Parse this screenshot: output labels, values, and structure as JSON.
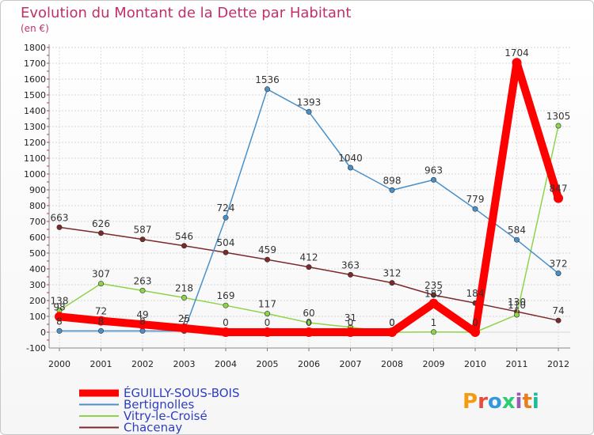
{
  "chart_data": {
    "type": "line",
    "title": "Evolution du Montant de la Dette par Habitant",
    "subtitle": "(en €)",
    "x": [
      "2000",
      "2001",
      "2002",
      "2003",
      "2004",
      "2005",
      "2006",
      "2007",
      "2008",
      "2009",
      "2010",
      "2011",
      "2012"
    ],
    "ylim": [
      -100,
      1800
    ],
    "yticks": [
      -100,
      0,
      100,
      200,
      300,
      400,
      500,
      600,
      700,
      800,
      900,
      1000,
      1100,
      1200,
      1300,
      1400,
      1500,
      1600,
      1700,
      1800
    ],
    "grid": true,
    "legend_position": "bottom-left",
    "series": [
      {
        "name": "ÉGUILLY-SOUS-BOIS",
        "color": "#ff0000",
        "values": [
          98,
          72,
          49,
          25,
          0,
          0,
          0,
          0,
          0,
          182,
          0,
          1704,
          847
        ]
      },
      {
        "name": "Bertignolles",
        "color": "#4a90c8",
        "values": [
          8,
          8,
          8,
          7,
          724,
          1536,
          1393,
          1040,
          898,
          963,
          779,
          584,
          372
        ]
      },
      {
        "name": "Vitry-le-Croisé",
        "color": "#8ed44a",
        "values": [
          138,
          307,
          263,
          218,
          169,
          117,
          60,
          31,
          0,
          1,
          0,
          110,
          1305
        ]
      },
      {
        "name": "Chacenay",
        "color": "#7a2a2a",
        "values": [
          663,
          626,
          587,
          546,
          504,
          459,
          412,
          363,
          312,
          235,
          184,
          130,
          74
        ]
      }
    ],
    "labels": [
      {
        "series": 1,
        "index": 4,
        "text": "724"
      },
      {
        "series": 1,
        "index": 5,
        "text": "1536"
      },
      {
        "series": 1,
        "index": 6,
        "text": "1393"
      },
      {
        "series": 1,
        "index": 7,
        "text": "1040"
      },
      {
        "series": 1,
        "index": 8,
        "text": "898"
      },
      {
        "series": 1,
        "index": 9,
        "text": "963"
      },
      {
        "series": 1,
        "index": 10,
        "text": "779"
      },
      {
        "series": 1,
        "index": 11,
        "text": "584"
      },
      {
        "series": 1,
        "index": 12,
        "text": "372"
      },
      {
        "series": 3,
        "index": 0,
        "text": "663"
      },
      {
        "series": 3,
        "index": 1,
        "text": "626"
      },
      {
        "series": 3,
        "index": 2,
        "text": "587"
      },
      {
        "series": 3,
        "index": 3,
        "text": "546"
      },
      {
        "series": 3,
        "index": 4,
        "text": "504"
      },
      {
        "series": 3,
        "index": 5,
        "text": "459"
      },
      {
        "series": 3,
        "index": 6,
        "text": "412"
      },
      {
        "series": 3,
        "index": 7,
        "text": "363"
      },
      {
        "series": 3,
        "index": 8,
        "text": "312"
      },
      {
        "series": 3,
        "index": 9,
        "text": "235"
      },
      {
        "series": 3,
        "index": 10,
        "text": "184"
      },
      {
        "series": 3,
        "index": 11,
        "text": "130"
      },
      {
        "series": 3,
        "index": 12,
        "text": "74"
      },
      {
        "series": 2,
        "index": 0,
        "text": "138"
      },
      {
        "series": 2,
        "index": 1,
        "text": "307"
      },
      {
        "series": 2,
        "index": 2,
        "text": "263"
      },
      {
        "series": 2,
        "index": 3,
        "text": "218"
      },
      {
        "series": 2,
        "index": 4,
        "text": "169"
      },
      {
        "series": 2,
        "index": 5,
        "text": "117"
      },
      {
        "series": 2,
        "index": 6,
        "text": "60"
      },
      {
        "series": 2,
        "index": 7,
        "text": "31"
      },
      {
        "series": 2,
        "index": 8,
        "text": "0"
      },
      {
        "series": 2,
        "index": 9,
        "text": "1"
      },
      {
        "series": 2,
        "index": 11,
        "text": "110"
      },
      {
        "series": 2,
        "index": 12,
        "text": "1305"
      },
      {
        "series": 0,
        "index": 0,
        "text": "98"
      },
      {
        "series": 0,
        "index": 1,
        "text": "72"
      },
      {
        "series": 0,
        "index": 2,
        "text": "49"
      },
      {
        "series": 0,
        "index": 3,
        "text": "25"
      },
      {
        "series": 0,
        "index": 4,
        "text": "0"
      },
      {
        "series": 0,
        "index": 5,
        "text": "0"
      },
      {
        "series": 0,
        "index": 6,
        "text": "0"
      },
      {
        "series": 0,
        "index": 7,
        "text": "0"
      },
      {
        "series": 0,
        "index": 8,
        "text": "0"
      },
      {
        "series": 0,
        "index": 9,
        "text": "182"
      },
      {
        "series": 0,
        "index": 10,
        "text": "0"
      },
      {
        "series": 0,
        "index": 11,
        "text": "1704"
      },
      {
        "series": 0,
        "index": 12,
        "text": "847"
      },
      {
        "series": 1,
        "index": 0,
        "text": "8"
      },
      {
        "series": 1,
        "index": 1,
        "text": "8"
      },
      {
        "series": 1,
        "index": 2,
        "text": "8"
      },
      {
        "series": 1,
        "index": 3,
        "text": "7"
      }
    ]
  },
  "logo": {
    "text": "Proxiti",
    "colors": [
      "#f39c12",
      "#e74c3c",
      "#3498db",
      "#2ecc71",
      "#9b59b6",
      "#e67e22",
      "#1abc9c"
    ]
  }
}
